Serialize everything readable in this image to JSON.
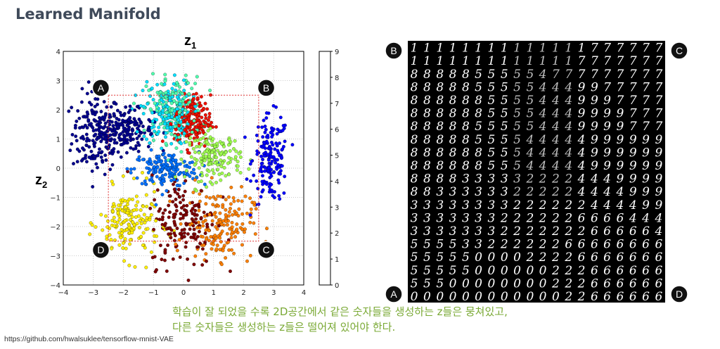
{
  "slide": {
    "title": "Learned Manifold",
    "caption_line1": "학습이 잘 되었을 수록 2D공간에서 같은 숫자들을 생성하는 z들은 뭉쳐있고,",
    "caption_line2": "다른 숫자들은 생성하는 z들은 떨어져 있어야 한다.",
    "source": "https://github.com/hwalsuklee/tensorflow-mnist-VAE"
  },
  "chart_data": [
    {
      "type": "scatter",
      "xlabel": "z1",
      "ylabel": "z2",
      "xlim": [
        -4,
        4
      ],
      "ylim": [
        -4,
        4
      ],
      "xticks": [
        "−4",
        "−3",
        "−2",
        "−1",
        "0",
        "1",
        "2",
        "3",
        "4"
      ],
      "yticks": [
        "4",
        "3",
        "2",
        "1",
        "0",
        "−1",
        "−2",
        "−3",
        "−4"
      ],
      "grid": true,
      "colorbar": {
        "ticks": [
          "0",
          "1",
          "2",
          "3",
          "4",
          "5",
          "6",
          "7",
          "8",
          "9"
        ],
        "colors": [
          "#00008f",
          "#0000ff",
          "#0070ff",
          "#00dfff",
          "#50ffaf",
          "#a0ff50",
          "#ffef00",
          "#ff8000",
          "#ef1000",
          "#800000"
        ]
      },
      "clusters": [
        {
          "digit": 0,
          "center": [
            -2.9,
            1.2
          ],
          "spread": [
            0.4,
            0.7
          ]
        },
        {
          "digit": 0,
          "center": [
            -1.9,
            1.3
          ],
          "spread": [
            0.45,
            0.35
          ]
        },
        {
          "digit": 1,
          "center": [
            2.9,
            0.3
          ],
          "spread": [
            0.3,
            0.75
          ]
        },
        {
          "digit": 2,
          "center": [
            -0.6,
            -0.05
          ],
          "spread": [
            0.55,
            0.3
          ]
        },
        {
          "digit": 3,
          "center": [
            -0.55,
            1.9
          ],
          "spread": [
            0.4,
            0.55
          ]
        },
        {
          "digit": 4,
          "center": [
            -0.3,
            2.0
          ],
          "spread": [
            0.45,
            0.55
          ]
        },
        {
          "digit": 5,
          "center": [
            1.0,
            0.4
          ],
          "spread": [
            0.45,
            0.4
          ]
        },
        {
          "digit": 6,
          "center": [
            -1.8,
            -1.9
          ],
          "spread": [
            0.5,
            0.6
          ]
        },
        {
          "digit": 7,
          "center": [
            1.2,
            -1.9
          ],
          "spread": [
            0.55,
            0.6
          ]
        },
        {
          "digit": 8,
          "center": [
            0.3,
            1.6
          ],
          "spread": [
            0.3,
            0.45
          ]
        },
        {
          "digit": 9,
          "center": [
            0.0,
            -1.8
          ],
          "spread": [
            0.55,
            0.8
          ]
        }
      ],
      "region": {
        "x": [
          -2.5,
          2.5
        ],
        "y": [
          -2.5,
          2.5
        ]
      },
      "corner_labels": [
        {
          "label": "A",
          "at": [
            -2.75,
            2.75
          ]
        },
        {
          "label": "B",
          "at": [
            2.75,
            2.75
          ]
        },
        {
          "label": "D",
          "at": [
            -2.75,
            -2.8
          ]
        },
        {
          "label": "C",
          "at": [
            2.75,
            -2.8
          ]
        }
      ]
    },
    {
      "type": "table",
      "description_rows": 20,
      "columns": 20,
      "corner_labels": {
        "top_left": "B",
        "top_right": "C",
        "bottom_left": "A",
        "bottom_right": "D"
      },
      "rows": [
        "11111111111111777777",
        "11111111111117777777",
        "88888555554777777777",
        "88888555554449977777",
        "88888855554449997777",
        "88888855554449999777",
        "88888555554449999777",
        "88888555544444999999",
        "88888855544444999999",
        "88888855544444999999",
        "88883333322224449999",
        "88333333222224444999",
        "33333333222222444499",
        "33333332222226666444",
        "33333332222222666664",
        "55553322222266666666",
        "55555000022226666666",
        "55555000000222666666",
        "55500000000222666666",
        "00000000000022666666"
      ]
    }
  ]
}
